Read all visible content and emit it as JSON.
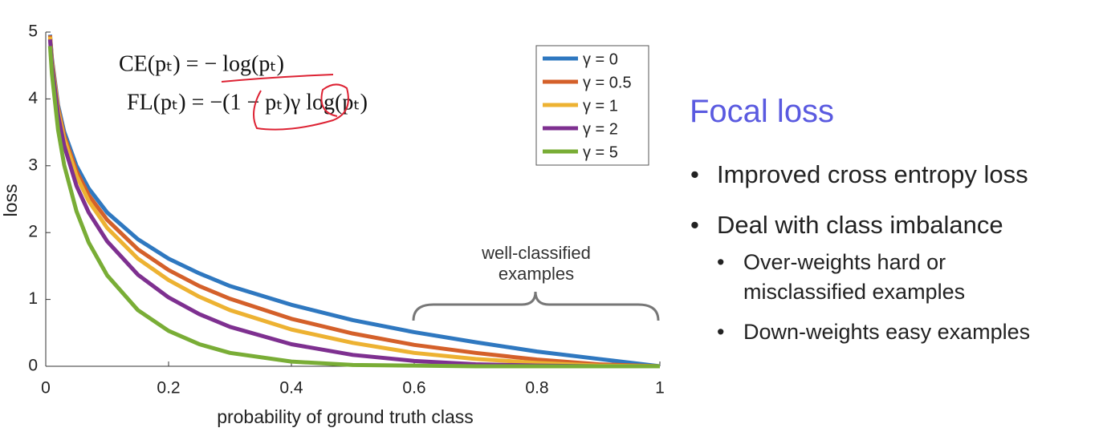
{
  "chart_data": {
    "type": "line",
    "x": [
      0.007,
      0.01,
      0.02,
      0.03,
      0.05,
      0.07,
      0.1,
      0.15,
      0.2,
      0.25,
      0.3,
      0.4,
      0.5,
      0.6,
      0.7,
      0.8,
      0.9,
      1
    ],
    "series": [
      {
        "name": "γ = 0",
        "color": "#2f78c0",
        "values": [
          4.96,
          4.61,
          3.91,
          3.51,
          3.0,
          2.66,
          2.3,
          1.9,
          1.61,
          1.39,
          1.2,
          0.92,
          0.69,
          0.51,
          0.36,
          0.22,
          0.11,
          0
        ]
      },
      {
        "name": "γ = 0.5",
        "color": "#d4602a",
        "values": [
          4.95,
          4.58,
          3.87,
          3.45,
          2.92,
          2.56,
          2.19,
          1.75,
          1.44,
          1.2,
          1.01,
          0.71,
          0.49,
          0.32,
          0.2,
          0.1,
          0.03,
          0
        ]
      },
      {
        "name": "γ = 1",
        "color": "#edb232",
        "values": [
          4.93,
          4.56,
          3.83,
          3.4,
          2.85,
          2.47,
          2.07,
          1.61,
          1.29,
          1.04,
          0.84,
          0.55,
          0.35,
          0.2,
          0.11,
          0.05,
          0.01,
          0
        ]
      },
      {
        "name": "γ = 2",
        "color": "#7e3090",
        "values": [
          4.89,
          4.51,
          3.76,
          3.3,
          2.7,
          2.3,
          1.87,
          1.37,
          1.03,
          0.78,
          0.59,
          0.33,
          0.17,
          0.08,
          0.03,
          0.01,
          0,
          0
        ]
      },
      {
        "name": "γ = 5",
        "color": "#79ad36",
        "values": [
          4.79,
          4.38,
          3.54,
          3.01,
          2.32,
          1.85,
          1.36,
          0.84,
          0.53,
          0.33,
          0.2,
          0.07,
          0.02,
          0.01,
          0,
          0,
          0,
          0
        ]
      }
    ],
    "xlim": [
      0,
      1
    ],
    "ylim": [
      0,
      5
    ],
    "xticks": [
      0,
      0.2,
      0.4,
      0.6,
      0.8,
      1
    ],
    "yticks": [
      0,
      1,
      2,
      3,
      4,
      5
    ],
    "xlabel": "probability of ground truth class",
    "ylabel": "loss",
    "legend": "upper right",
    "annotations": [
      "CE(pₜ) = − log(pₜ)",
      "FL(pₜ) = −(1 − pₜ)γ log(pₜ)",
      "well-classified",
      "examples"
    ]
  },
  "slide": {
    "title": "Focal loss",
    "bullets": [
      "Improved cross entropy loss",
      "Deal with class imbalance"
    ],
    "sub_bullets": [
      "Over-weights hard or misclassified examples",
      "Down-weights easy examples"
    ]
  }
}
